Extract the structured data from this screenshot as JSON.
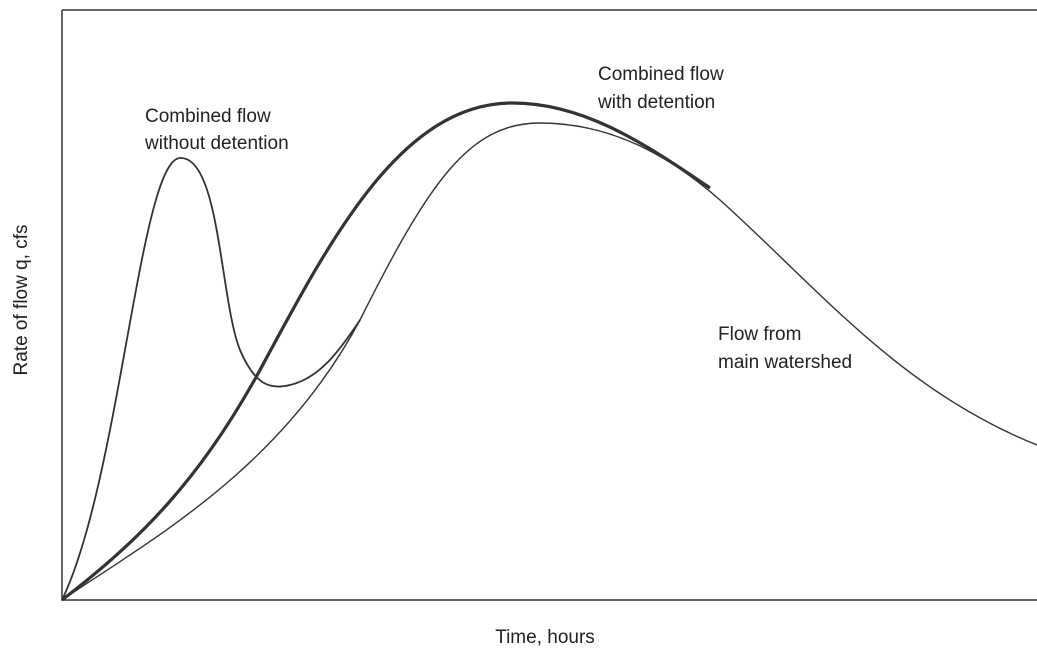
{
  "labels": {
    "without_detention": [
      "Combined flow",
      "without detention"
    ],
    "with_detention": [
      "Combined flow",
      "with detention"
    ],
    "main_watershed": [
      "Flow from",
      "main watershed"
    ]
  },
  "axes": {
    "x_label": "Time, hours",
    "y_label": "Rate of flow q, cfs"
  }
}
